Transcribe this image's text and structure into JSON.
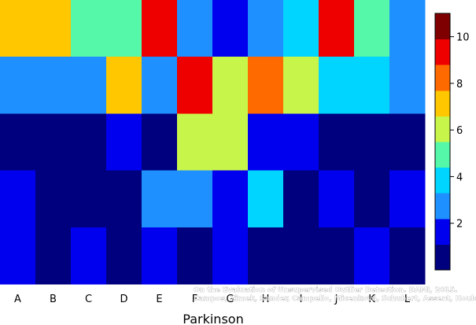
{
  "chart_data": {
    "type": "heatmap",
    "xlabel": "Parkinson",
    "columns": [
      "A",
      "B",
      "C",
      "D",
      "E",
      "F",
      "G",
      "H",
      "I",
      "J",
      "K",
      "L"
    ],
    "rows": 5,
    "values": [
      [
        7,
        7,
        5,
        5,
        9,
        3,
        2,
        3,
        4,
        9,
        5,
        3
      ],
      [
        3,
        3,
        3,
        7,
        3,
        9,
        6,
        8,
        6,
        4,
        4,
        3
      ],
      [
        1,
        1,
        1,
        2,
        1,
        6,
        6,
        2,
        2,
        1,
        1,
        1
      ],
      [
        2,
        1,
        1,
        1,
        3,
        3,
        2,
        4,
        1,
        2,
        1,
        2
      ],
      [
        2,
        1,
        2,
        1,
        2,
        1,
        2,
        1,
        1,
        1,
        2,
        1
      ]
    ],
    "colorbar": {
      "range": [
        0,
        11
      ],
      "ticks": [
        "2",
        "4",
        "6",
        "8",
        "10"
      ],
      "colors": [
        "#00007f",
        "#0000ee",
        "#1e90ff",
        "#00d5ff",
        "#55f7a8",
        "#c8f54a",
        "#ffc700",
        "#ff6a00",
        "#ee0000",
        "#7f0000"
      ]
    }
  },
  "watermark": {
    "line1": "On the Evaluation of Unsupervised Outlier Detection. DAMI, 2015.",
    "line2": "Campos, Zimek, Sander, Campello, Micenková, Schubert, Assent, Houle"
  }
}
